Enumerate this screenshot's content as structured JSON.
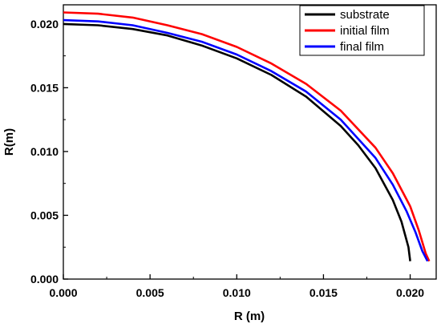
{
  "chart_data": {
    "type": "line",
    "title": "",
    "xlabel": "R (m)",
    "ylabel": "R(m)",
    "xlim": [
      0.0,
      0.0215
    ],
    "ylim": [
      0.0,
      0.0215
    ],
    "x_ticks": [
      "0.000",
      "0.005",
      "0.010",
      "0.015",
      "0.020"
    ],
    "y_ticks": [
      "0.000",
      "0.005",
      "0.010",
      "0.015",
      "0.020"
    ],
    "grid": false,
    "legend_position": "top-right",
    "series": [
      {
        "name": "substrate",
        "color": "#000000",
        "x": [
          0.0,
          0.002,
          0.004,
          0.006,
          0.008,
          0.01,
          0.012,
          0.014,
          0.016,
          0.017,
          0.018,
          0.019,
          0.0195,
          0.0199,
          0.02
        ],
        "y": [
          0.02,
          0.0199,
          0.0196,
          0.0191,
          0.0183,
          0.0173,
          0.016,
          0.0143,
          0.012,
          0.0105,
          0.0087,
          0.0062,
          0.0045,
          0.0025,
          0.0014
        ]
      },
      {
        "name": "initial film",
        "color": "#ff0000",
        "x": [
          0.0,
          0.002,
          0.004,
          0.006,
          0.008,
          0.01,
          0.012,
          0.014,
          0.016,
          0.018,
          0.019,
          0.02,
          0.0205,
          0.0209,
          0.0211
        ],
        "y": [
          0.0209,
          0.0208,
          0.0205,
          0.0199,
          0.0192,
          0.0182,
          0.0169,
          0.0153,
          0.0132,
          0.0103,
          0.0083,
          0.0057,
          0.0038,
          0.002,
          0.0014
        ]
      },
      {
        "name": "final film",
        "color": "#0000ff",
        "x": [
          0.0,
          0.002,
          0.004,
          0.006,
          0.008,
          0.01,
          0.012,
          0.014,
          0.016,
          0.018,
          0.019,
          0.0198,
          0.0203,
          0.0207,
          0.021
        ],
        "y": [
          0.0203,
          0.0202,
          0.0199,
          0.0193,
          0.0186,
          0.0176,
          0.0163,
          0.0147,
          0.0125,
          0.0095,
          0.0074,
          0.0053,
          0.0037,
          0.0022,
          0.0014
        ]
      }
    ]
  }
}
